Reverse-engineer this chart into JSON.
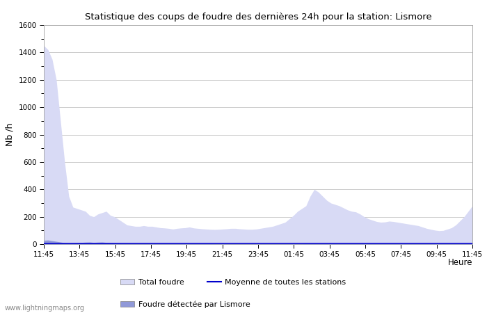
{
  "title": "Statistique des coups de foudre des dernières 24h pour la station: Lismore",
  "ylabel": "Nb /h",
  "xlabel": "Heure",
  "ylim": [
    0,
    1600
  ],
  "yticks": [
    0,
    200,
    400,
    600,
    800,
    1000,
    1200,
    1400,
    1600
  ],
  "xtick_labels": [
    "11:45",
    "13:45",
    "15:45",
    "17:45",
    "19:45",
    "21:45",
    "23:45",
    "01:45",
    "03:45",
    "05:45",
    "07:45",
    "09:45",
    "11:45"
  ],
  "bg_color": "#ffffff",
  "plot_bg_color": "#ffffff",
  "grid_color": "#cccccc",
  "fill_total_color": "#d8daf5",
  "fill_lismore_color": "#9099d8",
  "line_color": "#0000cc",
  "watermark": "www.lightningmaps.org",
  "legend": {
    "total_foudre": "Total foudre",
    "moyenne": "Moyenne de toutes les stations",
    "lismore": "Foudre détectée par Lismore"
  },
  "total_foudre": [
    1450,
    1420,
    1350,
    1200,
    900,
    600,
    350,
    270,
    260,
    250,
    240,
    210,
    200,
    220,
    230,
    240,
    210,
    200,
    180,
    160,
    140,
    135,
    130,
    130,
    135,
    130,
    130,
    125,
    120,
    118,
    115,
    110,
    115,
    118,
    120,
    125,
    118,
    115,
    112,
    110,
    108,
    107,
    108,
    110,
    112,
    115,
    115,
    112,
    110,
    108,
    108,
    110,
    115,
    120,
    125,
    130,
    140,
    150,
    160,
    185,
    210,
    240,
    260,
    280,
    350,
    400,
    380,
    350,
    320,
    300,
    290,
    280,
    265,
    250,
    240,
    235,
    220,
    200,
    185,
    175,
    165,
    160,
    162,
    168,
    165,
    160,
    155,
    150,
    145,
    140,
    135,
    125,
    115,
    108,
    102,
    98,
    100,
    110,
    120,
    140,
    170,
    200,
    240,
    280
  ],
  "lismore_detected": [
    28,
    30,
    25,
    20,
    15,
    10,
    8,
    8,
    10,
    12,
    14,
    15,
    12,
    14,
    15,
    12,
    10,
    8,
    6,
    5,
    5,
    4,
    4,
    4,
    4,
    4,
    3,
    3,
    3,
    3,
    3,
    3,
    3,
    3,
    3,
    3,
    3,
    3,
    3,
    3,
    3,
    2,
    2,
    2,
    2,
    2,
    2,
    2,
    2,
    2,
    2,
    2,
    2,
    2,
    2,
    2,
    2,
    2,
    2,
    2,
    2,
    2,
    2,
    3,
    3,
    3,
    3,
    3,
    3,
    3,
    3,
    3,
    3,
    3,
    3,
    3,
    3,
    3,
    3,
    3,
    3,
    3,
    3,
    3,
    3,
    3,
    3,
    3,
    3,
    3,
    3,
    3,
    3,
    3,
    3,
    3,
    3,
    3,
    3,
    3,
    3,
    3,
    3,
    3
  ],
  "moyenne_line": [
    5,
    5,
    5,
    5,
    5,
    5,
    5,
    5,
    5,
    5,
    5,
    5,
    5,
    5,
    5,
    5,
    5,
    5,
    5,
    5,
    5,
    5,
    5,
    5,
    5,
    5,
    5,
    5,
    5,
    5,
    5,
    5,
    5,
    5,
    5,
    5,
    5,
    5,
    5,
    5,
    5,
    5,
    5,
    5,
    5,
    5,
    5,
    5,
    5,
    5,
    5,
    5,
    5,
    5,
    5,
    5,
    5,
    5,
    5,
    5,
    5,
    5,
    5,
    5,
    5,
    5,
    5,
    5,
    5,
    5,
    5,
    5,
    5,
    5,
    5,
    5,
    5,
    5,
    5,
    5,
    5,
    5,
    5,
    5,
    5,
    5,
    5,
    5,
    5,
    5,
    5,
    5,
    5,
    5,
    5,
    5,
    5,
    5,
    5,
    5,
    5,
    5,
    5,
    5
  ]
}
